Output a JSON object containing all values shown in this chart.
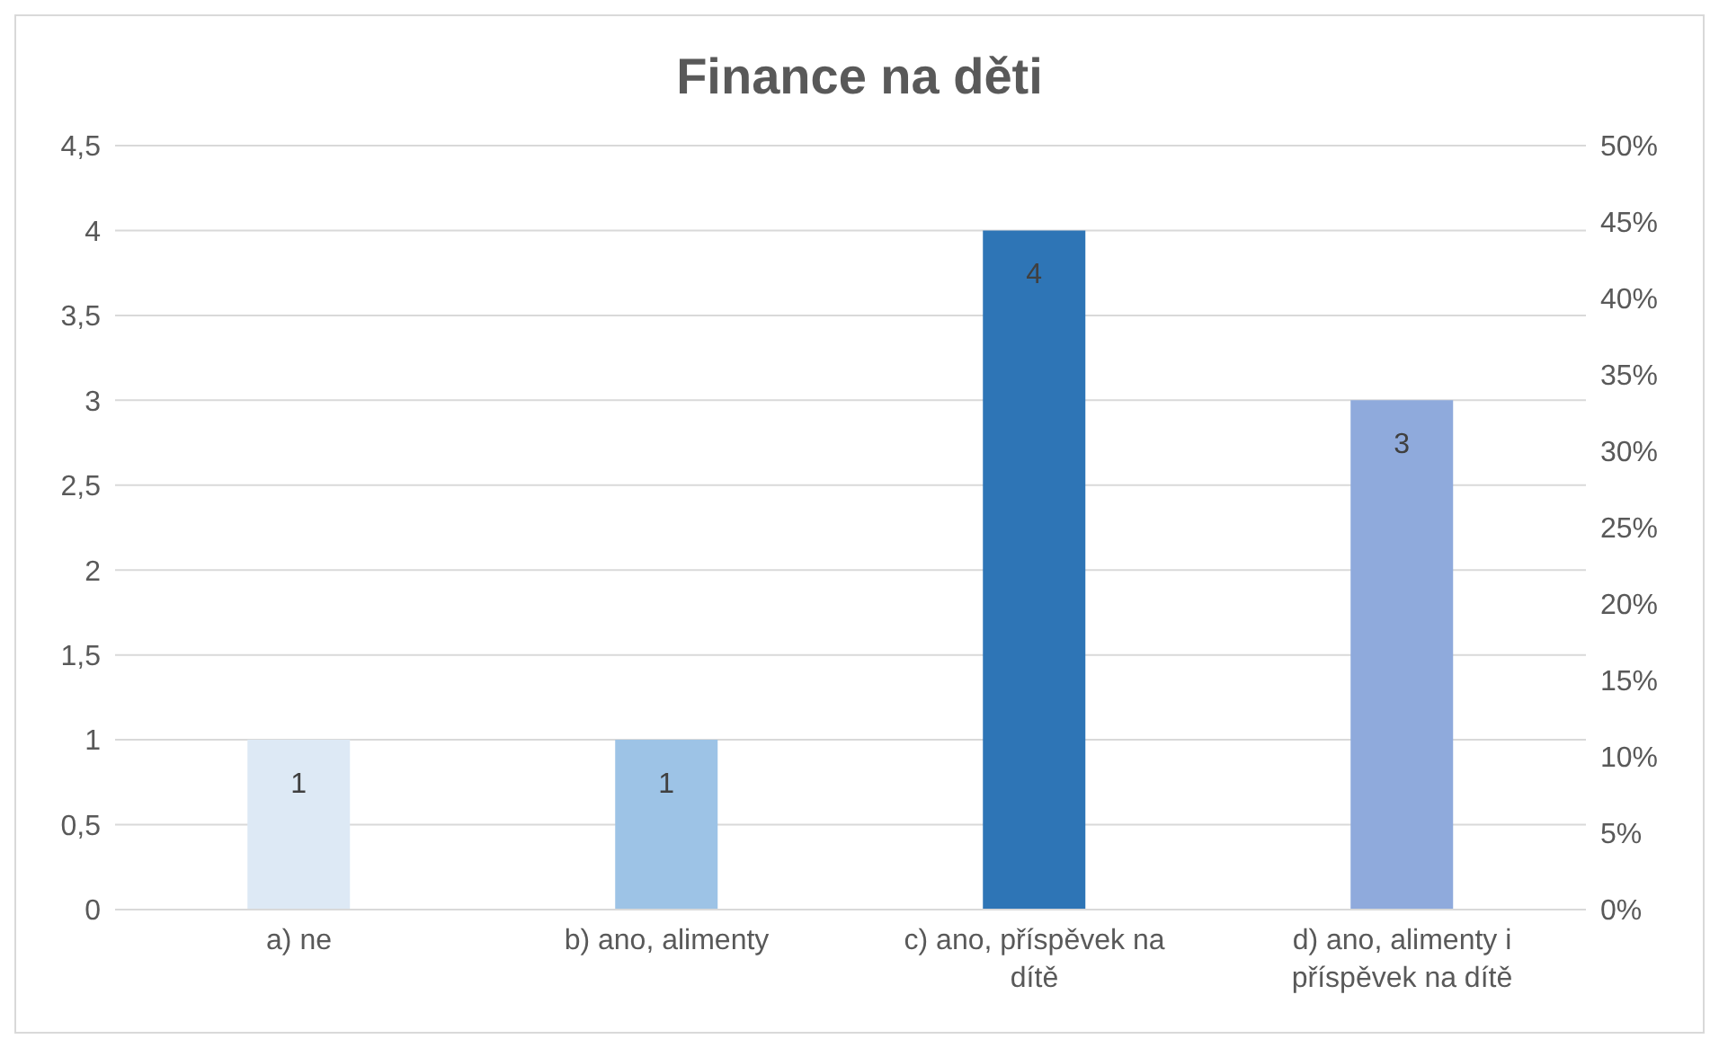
{
  "chart_data": {
    "type": "bar",
    "title": "Finance na děti",
    "categories": [
      "a) ne",
      "b) ano, alimenty",
      "c) ano, příspěvek na dítě",
      "d) ano, alimenty i příspěvek na dítě"
    ],
    "values": [
      1,
      1,
      4,
      3
    ],
    "colors": [
      "#dde9f5",
      "#9dc3e6",
      "#2e75b6",
      "#8faadc"
    ],
    "data_labels": true,
    "ylim": [
      0,
      4.5
    ],
    "yticks": [
      0,
      {
        "value": 0.5,
        "label": "0,5"
      },
      1,
      {
        "value": 1.5,
        "label": "1,5"
      },
      2,
      {
        "value": 2.5,
        "label": "2,5"
      },
      3,
      {
        "value": 3.5,
        "label": "3,5"
      },
      4,
      {
        "value": 4.5,
        "label": "4,5"
      }
    ],
    "y2lim": [
      0,
      50
    ],
    "y2ticks": [
      {
        "value": 0,
        "label": "0%"
      },
      {
        "value": 5,
        "label": "5%"
      },
      {
        "value": 10,
        "label": "10%"
      },
      {
        "value": 15,
        "label": "15%"
      },
      {
        "value": 20,
        "label": "20%"
      },
      {
        "value": 25,
        "label": "25%"
      },
      {
        "value": 30,
        "label": "30%"
      },
      {
        "value": 35,
        "label": "35%"
      },
      {
        "value": 40,
        "label": "40%"
      },
      {
        "value": 45,
        "label": "45%"
      },
      {
        "value": 50,
        "label": "50%"
      }
    ],
    "grid": "y",
    "legend": false
  }
}
